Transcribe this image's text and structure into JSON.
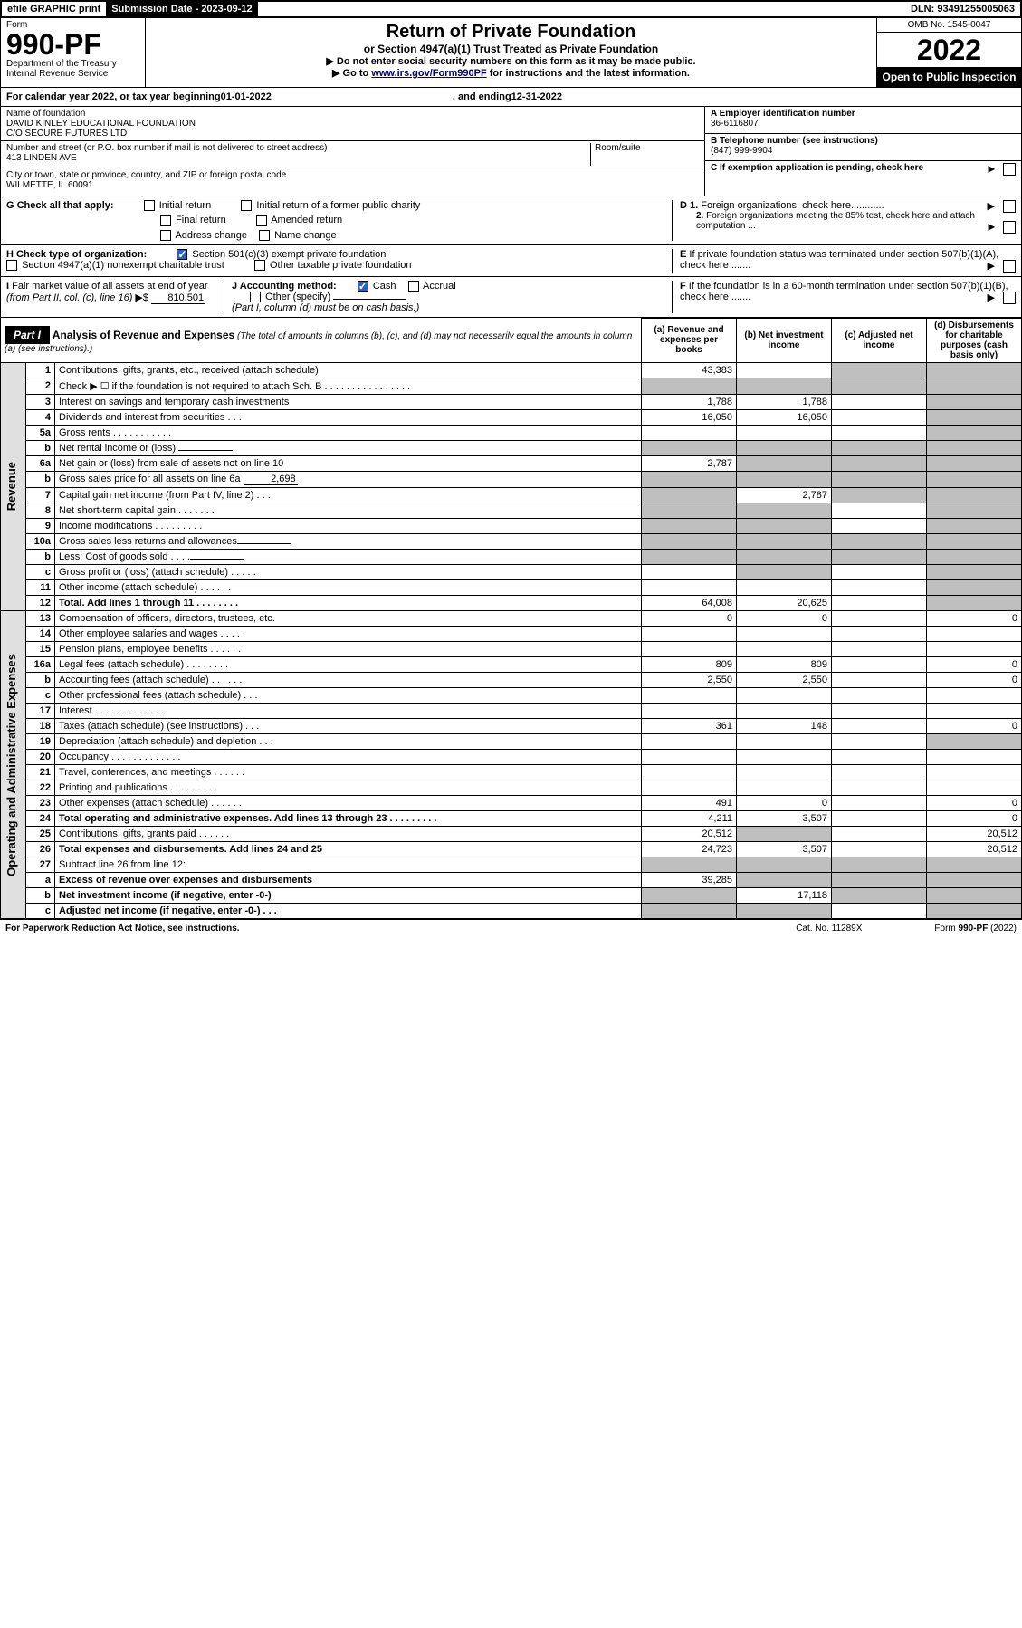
{
  "topbar": {
    "efile_label": "efile GRAPHIC print",
    "sub_date_label": "Submission Date - 2023-09-12",
    "dln": "DLN: 93491255005063"
  },
  "header": {
    "form_label": "Form",
    "form_number": "990-PF",
    "dept": "Department of the Treasury\nInternal Revenue Service",
    "title": "Return of Private Foundation",
    "subtitle": "or Section 4947(a)(1) Trust Treated as Private Foundation",
    "note1": "▶ Do not enter social security numbers on this form as it may be made public.",
    "note2_prefix": "▶ Go to ",
    "note2_link": "www.irs.gov/Form990PF",
    "note2_suffix": " for instructions and the latest information.",
    "omb": "OMB No. 1545-0047",
    "year": "2022",
    "open_public": "Open to Public Inspection"
  },
  "calendar": {
    "prefix": "For calendar year 2022, or tax year beginning ",
    "begin": "01-01-2022",
    "mid": ", and ending ",
    "end": "12-31-2022"
  },
  "entity": {
    "name_label": "Name of foundation",
    "name1": "DAVID KINLEY EDUCATIONAL FOUNDATION",
    "name2": "C/O SECURE FUTURES LTD",
    "addr_label": "Number and street (or P.O. box number if mail is not delivered to street address)",
    "addr": "413 LINDEN AVE",
    "room_label": "Room/suite",
    "city_label": "City or town, state or province, country, and ZIP or foreign postal code",
    "city": "WILMETTE, IL  60091",
    "ein_label": "A Employer identification number",
    "ein": "36-6116807",
    "phone_label": "B Telephone number (see instructions)",
    "phone": "(847) 999-9904",
    "c_label": "C If exemption application is pending, check here"
  },
  "checks": {
    "g_label": "G Check all that apply:",
    "initial": "Initial return",
    "initial_former": "Initial return of a former public charity",
    "final": "Final return",
    "amended": "Amended return",
    "addr_change": "Address change",
    "name_change": "Name change",
    "h_label": "H Check type of organization:",
    "h_501c3": "Section 501(c)(3) exempt private foundation",
    "h_4947": "Section 4947(a)(1) nonexempt charitable trust",
    "h_other": "Other taxable private foundation",
    "i_label": "I Fair market value of all assets at end of year (from Part II, col. (c), line 16) ▶$ ",
    "i_value": "810,501",
    "j_label": "J Accounting method:",
    "j_cash": "Cash",
    "j_accrual": "Accrual",
    "j_other": "Other (specify)",
    "j_note": "(Part I, column (d) must be on cash basis.)",
    "d1": "D 1. Foreign organizations, check here............",
    "d2": "2. Foreign organizations meeting the 85% test, check here and attach computation ...",
    "e_label": "E  If private foundation status was terminated under section 507(b)(1)(A), check here .......",
    "f_label": "F  If the foundation is in a 60-month termination under section 507(b)(1)(B), check here ......."
  },
  "part1": {
    "label": "Part I",
    "title": "Analysis of Revenue and Expenses",
    "title_note": " (The total of amounts in columns (b), (c), and (d) may not necessarily equal the amounts in column (a) (see instructions).)",
    "col_a": "(a)   Revenue and expenses per books",
    "col_b": "(b)   Net investment income",
    "col_c": "(c)   Adjusted net income",
    "col_d": "(d)   Disbursements for charitable purposes (cash basis only)"
  },
  "side_labels": {
    "revenue": "Revenue",
    "expenses": "Operating and Administrative Expenses"
  },
  "rows": [
    {
      "n": "1",
      "desc": "Contributions, gifts, grants, etc., received (attach schedule)",
      "a": "43,383",
      "b": "",
      "c": "shade",
      "d": "shade"
    },
    {
      "n": "2",
      "desc": "Check ▶ ☐ if the foundation is not required to attach Sch. B    .  .  .  .  .  .  .  .  .  .  .  .  .  .  .  .",
      "a": "shade",
      "b": "shade",
      "c": "shade",
      "d": "shade"
    },
    {
      "n": "3",
      "desc": "Interest on savings and temporary cash investments",
      "a": "1,788",
      "b": "1,788",
      "c": "",
      "d": "shade"
    },
    {
      "n": "4",
      "desc": "Dividends and interest from securities    .  .  .",
      "a": "16,050",
      "b": "16,050",
      "c": "",
      "d": "shade"
    },
    {
      "n": "5a",
      "desc": "Gross rents    .  .  .  .  .  .  .  .  .  .  .",
      "a": "",
      "b": "",
      "c": "",
      "d": "shade"
    },
    {
      "n": "b",
      "desc": "Net rental income or (loss)  ",
      "a": "shade",
      "b": "shade",
      "c": "shade",
      "d": "shade",
      "inline": true
    },
    {
      "n": "6a",
      "desc": "Net gain or (loss) from sale of assets not on line 10",
      "a": "2,787",
      "b": "shade",
      "c": "shade",
      "d": "shade"
    },
    {
      "n": "b",
      "desc": "Gross sales price for all assets on line 6a ",
      "a": "shade",
      "b": "shade",
      "c": "shade",
      "d": "shade",
      "inline": true,
      "inline_val": "2,698"
    },
    {
      "n": "7",
      "desc": "Capital gain net income (from Part IV, line 2)    .  .  .",
      "a": "shade",
      "b": "2,787",
      "c": "shade",
      "d": "shade"
    },
    {
      "n": "8",
      "desc": "Net short-term capital gain  .  .  .  .  .  .  .",
      "a": "shade",
      "b": "shade",
      "c": "",
      "d": "shade"
    },
    {
      "n": "9",
      "desc": "Income modifications  .  .  .  .  .  .  .  .  .",
      "a": "shade",
      "b": "shade",
      "c": "",
      "d": "shade"
    },
    {
      "n": "10a",
      "desc": "Gross sales less returns and allowances",
      "a": "shade",
      "b": "shade",
      "c": "shade",
      "d": "shade",
      "inline": true
    },
    {
      "n": "b",
      "desc": "Less: Cost of goods sold    .  .  .  .",
      "a": "shade",
      "b": "shade",
      "c": "shade",
      "d": "shade",
      "inline": true
    },
    {
      "n": "c",
      "desc": "Gross profit or (loss) (attach schedule)    .  .  .  .  .",
      "a": "",
      "b": "shade",
      "c": "",
      "d": "shade"
    },
    {
      "n": "11",
      "desc": "Other income (attach schedule)    .  .  .  .  .  .",
      "a": "",
      "b": "",
      "c": "",
      "d": "shade"
    },
    {
      "n": "12",
      "desc": "Total. Add lines 1 through 11    .  .  .  .  .  .  .  .",
      "a": "64,008",
      "b": "20,625",
      "c": "",
      "d": "shade",
      "bold": true
    },
    {
      "n": "13",
      "desc": "Compensation of officers, directors, trustees, etc.",
      "a": "0",
      "b": "0",
      "c": "",
      "d": "0"
    },
    {
      "n": "14",
      "desc": "Other employee salaries and wages    .  .  .  .  .",
      "a": "",
      "b": "",
      "c": "",
      "d": ""
    },
    {
      "n": "15",
      "desc": "Pension plans, employee benefits  .  .  .  .  .  .",
      "a": "",
      "b": "",
      "c": "",
      "d": ""
    },
    {
      "n": "16a",
      "desc": "Legal fees (attach schedule)  .  .  .  .  .  .  .  .",
      "a": "809",
      "b": "809",
      "c": "",
      "d": "0"
    },
    {
      "n": "b",
      "desc": "Accounting fees (attach schedule)  .  .  .  .  .  .",
      "a": "2,550",
      "b": "2,550",
      "c": "",
      "d": "0"
    },
    {
      "n": "c",
      "desc": "Other professional fees (attach schedule)    .  .  .",
      "a": "",
      "b": "",
      "c": "",
      "d": ""
    },
    {
      "n": "17",
      "desc": "Interest  .  .  .  .  .  .  .  .  .  .  .  .  .",
      "a": "",
      "b": "",
      "c": "",
      "d": ""
    },
    {
      "n": "18",
      "desc": "Taxes (attach schedule) (see instructions)    .  .  .",
      "a": "361",
      "b": "148",
      "c": "",
      "d": "0"
    },
    {
      "n": "19",
      "desc": "Depreciation (attach schedule) and depletion    .  .  .",
      "a": "",
      "b": "",
      "c": "",
      "d": "shade"
    },
    {
      "n": "20",
      "desc": "Occupancy  .  .  .  .  .  .  .  .  .  .  .  .  .",
      "a": "",
      "b": "",
      "c": "",
      "d": ""
    },
    {
      "n": "21",
      "desc": "Travel, conferences, and meetings  .  .  .  .  .  .",
      "a": "",
      "b": "",
      "c": "",
      "d": ""
    },
    {
      "n": "22",
      "desc": "Printing and publications  .  .  .  .  .  .  .  .  .",
      "a": "",
      "b": "",
      "c": "",
      "d": ""
    },
    {
      "n": "23",
      "desc": "Other expenses (attach schedule)  .  .  .  .  .  .",
      "a": "491",
      "b": "0",
      "c": "",
      "d": "0"
    },
    {
      "n": "24",
      "desc": "Total operating and administrative expenses. Add lines 13 through 23    .  .  .  .  .  .  .  .  .",
      "a": "4,211",
      "b": "3,507",
      "c": "",
      "d": "0",
      "bold": true
    },
    {
      "n": "25",
      "desc": "Contributions, gifts, grants paid    .  .  .  .  .  .",
      "a": "20,512",
      "b": "shade",
      "c": "",
      "d": "20,512"
    },
    {
      "n": "26",
      "desc": "Total expenses and disbursements. Add lines 24 and 25",
      "a": "24,723",
      "b": "3,507",
      "c": "",
      "d": "20,512",
      "bold": true
    },
    {
      "n": "27",
      "desc": "Subtract line 26 from line 12:",
      "a": "shade",
      "b": "shade",
      "c": "shade",
      "d": "shade"
    },
    {
      "n": "a",
      "desc": "Excess of revenue over expenses and disbursements",
      "a": "39,285",
      "b": "shade",
      "c": "shade",
      "d": "shade",
      "bold": true
    },
    {
      "n": "b",
      "desc": "Net investment income (if negative, enter -0-)",
      "a": "shade",
      "b": "17,118",
      "c": "shade",
      "d": "shade",
      "bold": true
    },
    {
      "n": "c",
      "desc": "Adjusted net income (if negative, enter -0-)    .  .  .",
      "a": "shade",
      "b": "shade",
      "c": "",
      "d": "shade",
      "bold": true
    }
  ],
  "footer": {
    "left": "For Paperwork Reduction Act Notice, see instructions.",
    "cat": "Cat. No. 11289X",
    "form": "Form 990-PF (2022)"
  }
}
